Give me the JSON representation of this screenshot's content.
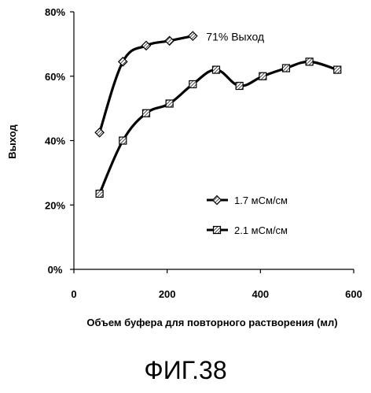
{
  "chart_data": {
    "type": "line",
    "title": "",
    "xlabel": "Объем буфера для повторного растворения (мл)",
    "ylabel": "Выход",
    "xlim": [
      0,
      600
    ],
    "ylim": [
      0,
      80
    ],
    "xticks": [
      0,
      200,
      400,
      600
    ],
    "yticks": [
      0,
      20,
      40,
      60,
      80
    ],
    "ytick_labels": [
      "0%",
      "20%",
      "40%",
      "60%",
      "80%"
    ],
    "grid": false,
    "legend_position": "middle-right",
    "series": [
      {
        "name": "1.7 мСм/см",
        "marker": "diamond",
        "color": "#000000",
        "x": [
          55,
          105,
          155,
          205,
          255
        ],
        "y": [
          42.5,
          64.5,
          69.5,
          71,
          72.5
        ]
      },
      {
        "name": "2.1 мСм/см",
        "marker": "square",
        "color": "#000000",
        "x": [
          55,
          105,
          155,
          205,
          255,
          305,
          355,
          405,
          455,
          505,
          565
        ],
        "y": [
          23.5,
          40,
          48.5,
          51.5,
          57.5,
          62,
          57,
          60,
          62.5,
          64.5,
          62
        ]
      }
    ],
    "annotations": [
      {
        "text": "71% Выход",
        "series": 0
      }
    ]
  },
  "caption": "ФИГ.38"
}
